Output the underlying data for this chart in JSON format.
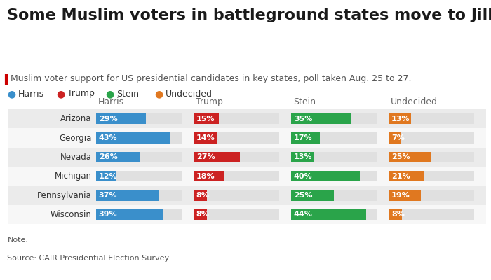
{
  "title": "Some Muslim voters in battleground states move to Jill Stein",
  "subtitle": "Muslim voter support for US presidential candidates in key states, poll taken Aug. 25 to 27.",
  "note": "Note:",
  "source": "Source: CAIR Presidential Election Survey",
  "states": [
    "Arizona",
    "Georgia",
    "Nevada",
    "Michigan",
    "Pennsylvania",
    "Wisconsin"
  ],
  "candidates": [
    "Harris",
    "Trump",
    "Stein",
    "Undecided"
  ],
  "colors": {
    "Harris": "#3a8fcb",
    "Trump": "#cc2222",
    "Stein": "#2aa44a",
    "Undecided": "#e07820"
  },
  "data": {
    "Harris": [
      29,
      43,
      26,
      12,
      37,
      39
    ],
    "Trump": [
      15,
      14,
      27,
      18,
      8,
      8
    ],
    "Stein": [
      35,
      17,
      13,
      40,
      25,
      44
    ],
    "Undecided": [
      13,
      7,
      25,
      21,
      19,
      8
    ]
  },
  "max_value": 50,
  "background_color": "#ffffff",
  "bar_bg_color": "#e0e0e0",
  "row_even_color": "#ebebeb",
  "row_odd_color": "#f7f7f7",
  "title_fontsize": 16,
  "subtitle_fontsize": 9,
  "label_fontsize": 8,
  "col_header_fontsize": 9,
  "state_fontsize": 8.5,
  "note_fontsize": 8,
  "legend_fontsize": 9
}
